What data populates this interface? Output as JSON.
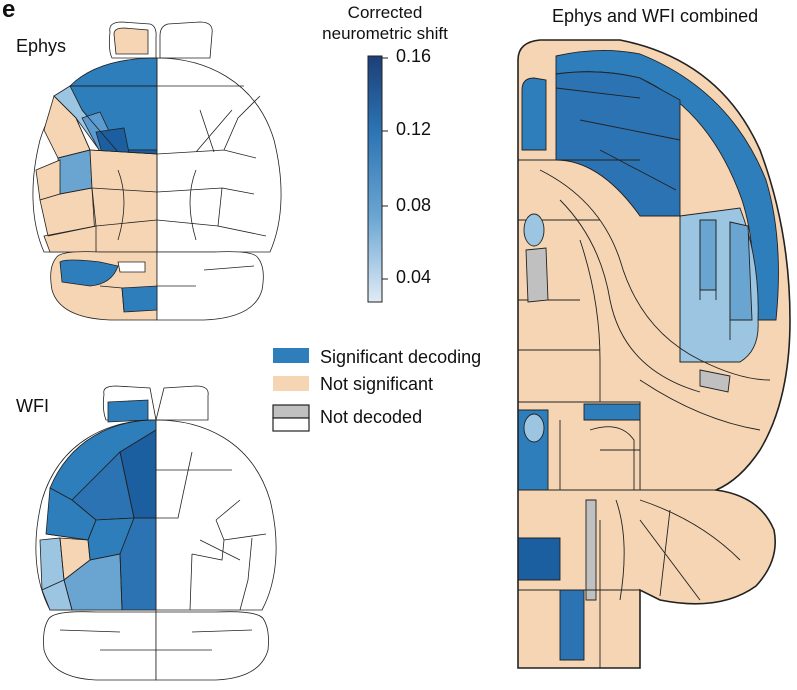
{
  "panel_letter": "e",
  "labels": {
    "ephys": "Ephys",
    "wfi": "WFI",
    "combined": "Ephys and WFI combined"
  },
  "colorbar": {
    "title_line1": "Corrected",
    "title_line2": "neurometric shift",
    "ticks": [
      "0.16",
      "0.12",
      "0.08",
      "0.04"
    ],
    "range": [
      0.025,
      0.16
    ],
    "color_low": "#d8e6f3",
    "color_high": "#1c3f78"
  },
  "legend": {
    "items": [
      {
        "label": "Significant decoding",
        "color": "#2e7ebc"
      },
      {
        "label": "Not significant",
        "color": "#f5d5b3"
      },
      {
        "label": "Not decoded",
        "color": "#c0c0c0"
      }
    ]
  },
  "colors": {
    "significant": "#2e7ebc",
    "not_significant": "#f5d5b3",
    "not_decoded": "#c0c0c0",
    "outline": "#222222"
  }
}
